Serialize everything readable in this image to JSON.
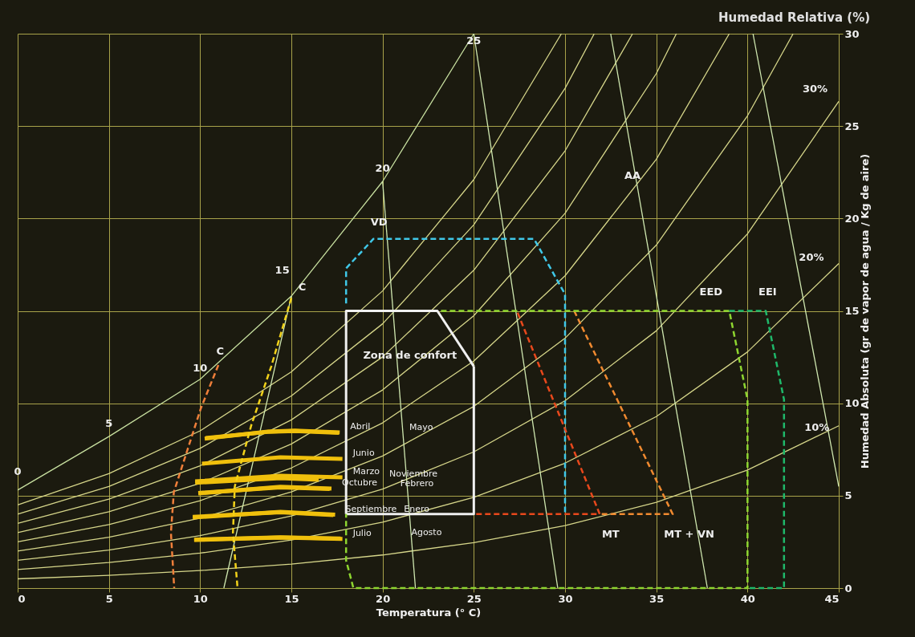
{
  "chart_data": {
    "type": "line",
    "title": "Humedad Relativa (%)",
    "xlabel": "Temperatura (° C)",
    "ylabel": "Humedad Absoluta (gr de vapor de agua / Kg de aire)",
    "xlim": [
      0,
      45
    ],
    "ylim": [
      0,
      30
    ],
    "xticks": [
      0,
      5,
      10,
      15,
      20,
      25,
      30,
      35,
      40,
      45
    ],
    "yticks": [
      0,
      5,
      10,
      15,
      20,
      25,
      30
    ],
    "grid": true,
    "annotations": [
      "Zona de confort",
      "VD",
      "MT",
      "MT + VN",
      "EED",
      "EEI",
      "AA",
      "C",
      "C",
      "10%",
      "20%",
      "30%",
      "0",
      "5",
      "10",
      "15",
      "20",
      "25"
    ],
    "series": [
      {
        "color": "#d6d68a",
        "line_style": "solid",
        "x": [
          0,
          5,
          10,
          15,
          20,
          25,
          30,
          35,
          40,
          45
        ],
        "values": [
          0.5,
          0.69,
          0.95,
          1.3,
          1.79,
          2.46,
          3.38,
          4.64,
          6.39,
          8.78
        ]
      },
      {
        "color": "#d6d68a",
        "line_style": "solid",
        "x": [
          0,
          5,
          10,
          15,
          20,
          25,
          30,
          35,
          40,
          45
        ],
        "values": [
          1.0,
          1.38,
          1.89,
          2.6,
          3.57,
          4.91,
          6.76,
          9.28,
          12.78,
          17.56
        ]
      },
      {
        "color": "#d6d68a",
        "line_style": "solid",
        "x": [
          0,
          5,
          10,
          15,
          20,
          25,
          30,
          35,
          40,
          45
        ],
        "values": [
          1.5,
          2.06,
          2.84,
          3.9,
          5.36,
          7.37,
          10.14,
          13.92,
          19.17,
          26.34
        ]
      },
      {
        "color": "#d6d68a",
        "line_style": "solid",
        "x": [
          0,
          5,
          10,
          15,
          20,
          25,
          30,
          35,
          40,
          42.5
        ],
        "values": [
          2.0,
          2.75,
          3.78,
          5.2,
          7.15,
          9.83,
          13.52,
          18.56,
          25.56,
          30
        ]
      },
      {
        "color": "#d6d68a",
        "line_style": "solid",
        "x": [
          0,
          5,
          10,
          15,
          20,
          25,
          30,
          35,
          39
        ],
        "values": [
          2.5,
          3.44,
          4.73,
          6.5,
          8.94,
          12.29,
          16.9,
          23.2,
          30
        ]
      },
      {
        "color": "#d6d68a",
        "line_style": "solid",
        "x": [
          0,
          5,
          10,
          15,
          20,
          25,
          30,
          35,
          36.1
        ],
        "values": [
          3.0,
          4.13,
          5.67,
          7.8,
          10.72,
          14.74,
          20.28,
          27.84,
          30
        ]
      },
      {
        "color": "#d6d68a",
        "line_style": "solid",
        "x": [
          0,
          5,
          10,
          15,
          20,
          25,
          30,
          33.7
        ],
        "values": [
          3.5,
          4.81,
          6.62,
          9.1,
          12.51,
          17.2,
          23.66,
          30
        ]
      },
      {
        "color": "#d6d68a",
        "line_style": "solid",
        "x": [
          0,
          5,
          10,
          15,
          20,
          25,
          30,
          31.6
        ],
        "values": [
          4.0,
          5.5,
          7.56,
          10.4,
          14.3,
          19.66,
          27.04,
          30
        ]
      },
      {
        "color": "#d6d68a",
        "line_style": "solid",
        "x": [
          0,
          5,
          10,
          15,
          20,
          25,
          29.8
        ],
        "values": [
          4.5,
          6.19,
          8.51,
          11.7,
          16.08,
          22.11,
          30
        ]
      },
      {
        "color": "#c8e0a0",
        "line_style": "solid",
        "x": [
          0,
          5,
          10,
          15,
          20,
          25
        ],
        "values": [
          5.3,
          8.2,
          11.3,
          15.8,
          22,
          30
        ]
      },
      {
        "color": "#d0e8b0",
        "line_style": "solid",
        "x": [
          11.3,
          15
        ],
        "values": [
          0,
          15.8
        ]
      },
      {
        "color": "#d0e8b0",
        "line_style": "solid",
        "x": [
          21.8,
          20
        ],
        "values": [
          0,
          22
        ]
      },
      {
        "color": "#d0e8b0",
        "line_style": "solid",
        "x": [
          29.6,
          25
        ],
        "values": [
          0,
          30
        ]
      },
      {
        "color": "#d0e8b0",
        "line_style": "solid",
        "x": [
          37.8,
          32.5
        ],
        "values": [
          0,
          30
        ]
      },
      {
        "color": "#d0e8b0",
        "line_style": "solid",
        "x": [
          45,
          40.3
        ],
        "values": [
          5.5,
          30
        ]
      },
      {
        "color": "#40c8e8",
        "line_style": "dashed",
        "x": [
          18,
          18,
          19.5,
          28.3,
          30,
          30
        ],
        "values": [
          15.4,
          17.3,
          18.9,
          18.9,
          15.9,
          4
        ]
      },
      {
        "color": "#e8481c",
        "line_style": "dashed",
        "x": [
          27.4,
          31.9,
          25
        ],
        "values": [
          14.9,
          4,
          4
        ]
      },
      {
        "color": "#f08a30",
        "line_style": "dashed",
        "x": [
          30.5,
          35.9,
          31.9
        ],
        "values": [
          15,
          4,
          4
        ]
      },
      {
        "color": "#8ed630",
        "line_style": "dashed",
        "x": [
          23.2,
          39,
          40,
          40,
          18.4,
          18,
          18
        ],
        "values": [
          15,
          15,
          10.2,
          0,
          0,
          1.5,
          4
        ]
      },
      {
        "color": "#1fb86a",
        "line_style": "dashed",
        "x": [
          39,
          41,
          42,
          42,
          40
        ],
        "values": [
          15,
          15,
          10.2,
          0,
          0
        ]
      },
      {
        "color": "#ef7f3a",
        "line_style": "dashed",
        "x": [
          11,
          10.03,
          9.28,
          8.56,
          8.4,
          8.58
        ],
        "values": [
          12.07,
          9.7,
          7.4,
          5.2,
          3,
          0
        ]
      },
      {
        "color": "#f2d21a",
        "line_style": "dashed",
        "x": [
          15,
          13.9,
          12.8,
          11.9,
          11.8,
          12.05
        ],
        "values": [
          15.7,
          12,
          8.8,
          5.5,
          3,
          0
        ]
      },
      {
        "color": "#f0f0f0",
        "line_style": "solid",
        "x": [
          18,
          18,
          23,
          25
        ],
        "values": [
          4,
          15,
          15,
          12
        ]
      },
      {
        "color": "#f0f0f0",
        "line_style": "solid",
        "x": [
          25,
          25,
          18
        ],
        "values": [
          12,
          4,
          4
        ]
      },
      {
        "name": "Abril",
        "color": "#f0c00c",
        "line_style": "solid",
        "x": [
          10.25,
          13.7,
          15.2,
          17.65
        ],
        "values": [
          8.09,
          8.47,
          8.52,
          8.42
        ]
      },
      {
        "name": "Mayo",
        "color": "#f0c00c",
        "line_style": "solid",
        "x": [
          10.3,
          13.7,
          15.2,
          17.6
        ],
        "values": [
          8.12,
          8.45,
          8.5,
          8.4
        ]
      },
      {
        "name": "Marzo",
        "color": "#f0c00c",
        "line_style": "solid",
        "x": [
          9.73,
          14.4,
          17.8
        ],
        "values": [
          5.77,
          6.08,
          5.99
        ]
      },
      {
        "name": "Noviembre",
        "color": "#f0c00c",
        "line_style": "solid",
        "x": [
          9.73,
          14.4,
          16.5
        ],
        "values": [
          5.7,
          5.95,
          5.86
        ]
      },
      {
        "name": "Octubre",
        "color": "#f0c00c",
        "line_style": "solid",
        "x": [
          9.9,
          14.4,
          17.2
        ],
        "values": [
          5.12,
          5.48,
          5.38
        ]
      },
      {
        "name": "Febrero",
        "color": "#f0c00c",
        "line_style": "solid",
        "x": [
          9.9,
          14.4,
          17.1
        ],
        "values": [
          5.15,
          5.45,
          5.36
        ]
      },
      {
        "name": "Septiembre",
        "color": "#f0c00c",
        "line_style": "solid",
        "x": [
          9.6,
          14.4,
          17.4
        ],
        "values": [
          3.82,
          4.12,
          3.97
        ]
      },
      {
        "name": "Enero",
        "color": "#f0c00c",
        "line_style": "solid",
        "x": [
          9.6,
          14.4,
          17.3
        ],
        "values": [
          3.85,
          4.1,
          3.95
        ]
      },
      {
        "name": "Julio",
        "color": "#f0c00c",
        "line_style": "solid",
        "x": [
          9.67,
          14.4,
          17.8
        ],
        "values": [
          2.6,
          2.74,
          2.66
        ]
      },
      {
        "name": "Agosto",
        "color": "#f0c00c",
        "line_style": "solid",
        "x": [
          9.7,
          14.4,
          17.7
        ],
        "values": [
          2.62,
          2.75,
          2.68
        ]
      },
      {
        "name": "Junio",
        "color": "#f0c00c",
        "line_style": "solid",
        "x": [
          10.1,
          14.4,
          17.8
        ],
        "values": [
          6.73,
          7.08,
          6.99
        ]
      }
    ]
  }
}
